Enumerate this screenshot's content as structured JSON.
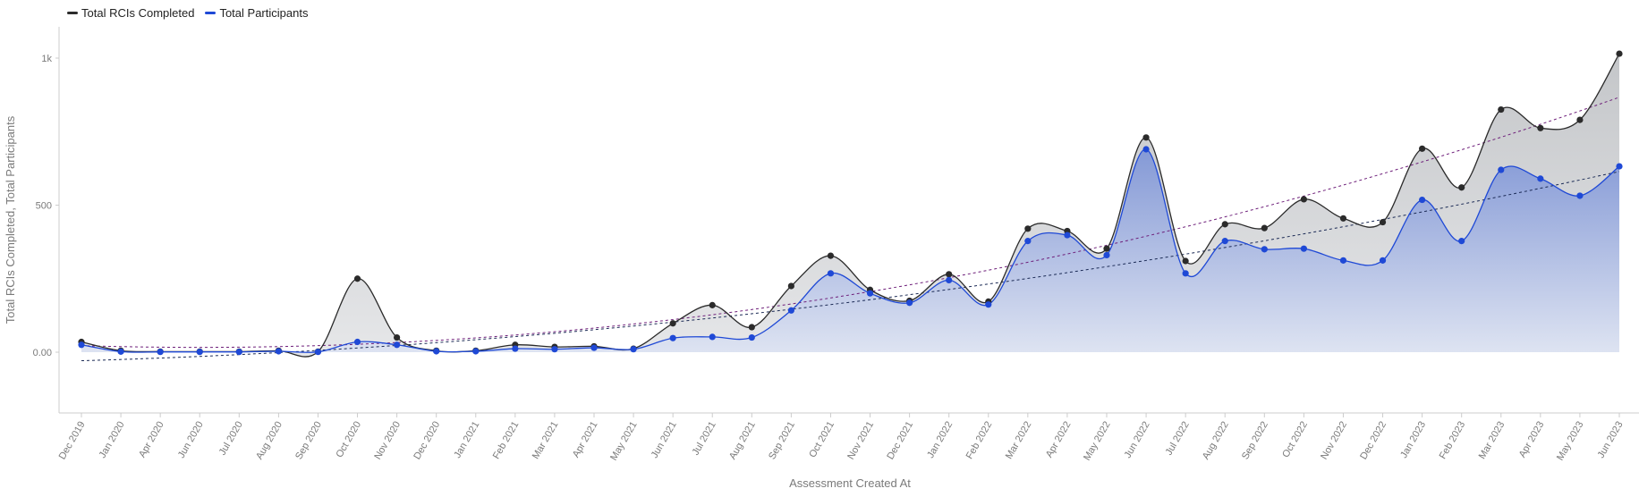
{
  "legend": {
    "series_0": "Total RCIs Completed",
    "series_1": "Total Participants"
  },
  "colors": {
    "series_0": "#2b2b2b",
    "series_1": "#1f49d6",
    "series_0_fill": "#cfd1d3",
    "series_1_fill": "#8c9fdc",
    "trend_0": "#6e1f7a",
    "trend_1": "#1b2a55",
    "axis": "#cccccc"
  },
  "chart_data": {
    "type": "area",
    "title": "",
    "xlabel": "Assessment Created At",
    "ylabel": "Total RCIs Completed, Total Participants",
    "ylim": [
      -200,
      1100
    ],
    "yticks": [
      0,
      500,
      1000
    ],
    "ytick_labels": [
      "0.00",
      "500",
      "1k"
    ],
    "categories": [
      "Dec 2019",
      "Jan 2020",
      "Apr 2020",
      "Jun 2020",
      "Jul 2020",
      "Aug 2020",
      "Sep 2020",
      "Oct 2020",
      "Nov 2020",
      "Dec 2020",
      "Jan 2021",
      "Feb 2021",
      "Mar 2021",
      "Apr 2021",
      "May 2021",
      "Jun 2021",
      "Jul 2021",
      "Aug 2021",
      "Sep 2021",
      "Oct 2021",
      "Nov 2021",
      "Dec 2021",
      "Jan 2022",
      "Feb 2022",
      "Mar 2022",
      "Apr 2022",
      "May 2022",
      "Jun 2022",
      "Jul 2022",
      "Aug 2022",
      "Sep 2022",
      "Oct 2022",
      "Nov 2022",
      "Dec 2022",
      "Jan 2023",
      "Feb 2023",
      "Mar 2023",
      "Apr 2023",
      "May 2023",
      "Jun 2023"
    ],
    "series": [
      {
        "name": "Total RCIs Completed",
        "values": [
          35,
          5,
          2,
          2,
          2,
          5,
          2,
          250,
          50,
          5,
          5,
          25,
          18,
          20,
          12,
          98,
          160,
          85,
          225,
          328,
          212,
          175,
          265,
          172,
          420,
          412,
          352,
          730,
          310,
          435,
          422,
          520,
          455,
          442,
          692,
          560,
          825,
          762,
          790,
          1015
        ]
      },
      {
        "name": "Total Participants",
        "values": [
          25,
          2,
          1,
          1,
          1,
          3,
          1,
          35,
          25,
          3,
          3,
          12,
          10,
          15,
          10,
          48,
          52,
          50,
          142,
          268,
          200,
          168,
          245,
          162,
          378,
          398,
          330,
          690,
          268,
          378,
          350,
          352,
          312,
          312,
          518,
          378,
          620,
          590,
          532,
          632
        ]
      }
    ],
    "trendlines": [
      {
        "series": "Total RCIs Completed",
        "type": "polynomial",
        "style": "dashed"
      },
      {
        "series": "Total Participants",
        "type": "polynomial",
        "style": "dashed"
      }
    ],
    "legend_position": "top-left",
    "grid": false
  }
}
